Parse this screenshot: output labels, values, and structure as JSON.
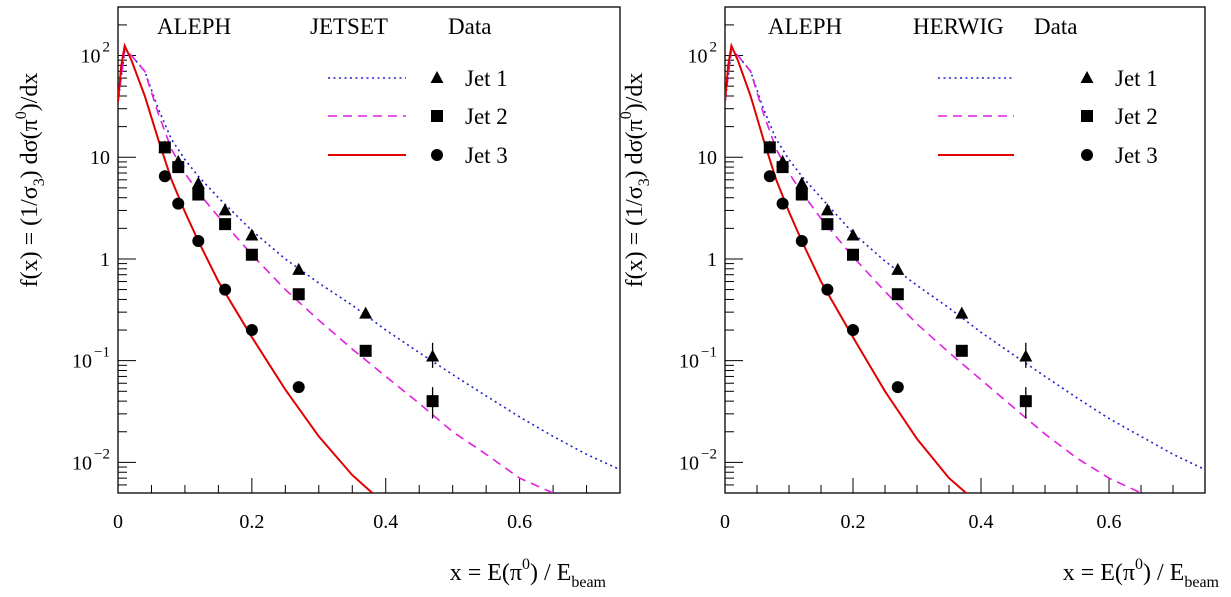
{
  "chart_data": [
    {
      "type": "line",
      "title": "",
      "annotations": [
        "ALEPH"
      ],
      "legend_header": {
        "model": "JETSET",
        "data": "Data"
      },
      "xlabel": {
        "main": "x = E(π",
        "sup": "0",
        "mid": ") / E",
        "sub": "beam"
      },
      "ylabel": {
        "a": "f(x) = (1/σ",
        "a_sub": "3",
        "b": ") dσ(π",
        "b_sup": "0",
        "c": ")/dx"
      },
      "xlim": [
        0,
        0.75
      ],
      "ylim": [
        0.005,
        300
      ],
      "yscale": "log",
      "x_ticks": [
        "0",
        "0.2",
        "0.4",
        "0.6"
      ],
      "y_ticks": [
        {
          "value": 100,
          "base": "10",
          "exp": "2"
        },
        {
          "value": 10,
          "base": "10",
          "exp": ""
        },
        {
          "value": 1,
          "base": "1",
          "exp": ""
        },
        {
          "value": 0.1,
          "base": "10",
          "exp": "−1"
        },
        {
          "value": 0.01,
          "base": "10",
          "exp": "−2"
        }
      ],
      "series": [
        {
          "kind": "model",
          "style": "dotted",
          "color": "#2020d0",
          "x": [
            0.0,
            0.01,
            0.02,
            0.04,
            0.06,
            0.08,
            0.1,
            0.12,
            0.15,
            0.2,
            0.25,
            0.3,
            0.35,
            0.4,
            0.45,
            0.5,
            0.55,
            0.6,
            0.65,
            0.7,
            0.75
          ],
          "y": [
            35,
            110,
            100,
            70,
            30,
            15,
            9.5,
            6.5,
            4,
            1.9,
            1.0,
            0.58,
            0.35,
            0.2,
            0.12,
            0.073,
            0.045,
            0.028,
            0.018,
            0.012,
            0.0085
          ]
        },
        {
          "kind": "model",
          "style": "dashed",
          "color": "#e020e0",
          "x": [
            0.0,
            0.01,
            0.02,
            0.04,
            0.06,
            0.08,
            0.1,
            0.12,
            0.15,
            0.2,
            0.25,
            0.3,
            0.35,
            0.4,
            0.45,
            0.5,
            0.55,
            0.6,
            0.65
          ],
          "y": [
            35,
            115,
            100,
            70,
            27,
            12,
            7,
            4.5,
            2.6,
            1.1,
            0.5,
            0.25,
            0.13,
            0.07,
            0.038,
            0.02,
            0.012,
            0.007,
            0.005
          ]
        },
        {
          "kind": "model",
          "style": "solid",
          "color": "#e00000",
          "x": [
            0.0,
            0.005,
            0.01,
            0.02,
            0.04,
            0.06,
            0.08,
            0.1,
            0.12,
            0.15,
            0.2,
            0.25,
            0.3,
            0.35,
            0.38
          ],
          "y": [
            35,
            80,
            125,
            90,
            40,
            15,
            6,
            2.9,
            1.5,
            0.6,
            0.17,
            0.052,
            0.018,
            0.0075,
            0.005
          ]
        }
      ],
      "data_points": [
        {
          "name": "Jet 1",
          "marker": "triangle",
          "x": [
            0.07,
            0.09,
            0.12,
            0.16,
            0.2,
            0.27,
            0.37,
            0.47
          ],
          "y": [
            12.5,
            9.0,
            5.5,
            3.0,
            1.7,
            0.78,
            0.29,
            0.11
          ],
          "err_lo": [
            null,
            null,
            null,
            null,
            null,
            null,
            null,
            0.085
          ],
          "err_hi": [
            null,
            null,
            null,
            null,
            null,
            null,
            null,
            0.15
          ]
        },
        {
          "name": "Jet 2",
          "marker": "square",
          "x": [
            0.07,
            0.09,
            0.12,
            0.16,
            0.2,
            0.27,
            0.37,
            0.47
          ],
          "y": [
            12.5,
            8.0,
            4.3,
            2.2,
            1.1,
            0.45,
            0.125,
            0.04
          ],
          "err_lo": [
            null,
            null,
            null,
            null,
            null,
            null,
            null,
            0.027
          ],
          "err_hi": [
            null,
            null,
            null,
            null,
            null,
            null,
            null,
            0.055
          ]
        },
        {
          "name": "Jet 3",
          "marker": "circle",
          "x": [
            0.07,
            0.09,
            0.12,
            0.16,
            0.2,
            0.27
          ],
          "y": [
            6.5,
            3.5,
            1.5,
            0.5,
            0.2,
            0.055
          ],
          "err_lo": [
            null,
            null,
            null,
            null,
            null,
            null
          ],
          "err_hi": [
            null,
            null,
            null,
            null,
            null,
            null
          ]
        }
      ]
    },
    {
      "type": "line",
      "title": "",
      "annotations": [
        "ALEPH"
      ],
      "legend_header": {
        "model": "HERWIG",
        "data": "Data"
      },
      "xlabel": {
        "main": "x = E(π",
        "sup": "0",
        "mid": ") / E",
        "sub": "beam"
      },
      "ylabel": {
        "a": "f(x) = (1/σ",
        "a_sub": "3",
        "b": ") dσ(π",
        "b_sup": "0",
        "c": ")/dx"
      },
      "xlim": [
        0,
        0.75
      ],
      "ylim": [
        0.005,
        300
      ],
      "yscale": "log",
      "x_ticks": [
        "0",
        "0.2",
        "0.4",
        "0.6"
      ],
      "y_ticks": [
        {
          "value": 100,
          "base": "10",
          "exp": "2"
        },
        {
          "value": 10,
          "base": "10",
          "exp": ""
        },
        {
          "value": 1,
          "base": "1",
          "exp": ""
        },
        {
          "value": 0.1,
          "base": "10",
          "exp": "−1"
        },
        {
          "value": 0.01,
          "base": "10",
          "exp": "−2"
        }
      ],
      "series": [
        {
          "kind": "model",
          "style": "dotted",
          "color": "#2020d0",
          "x": [
            0.0,
            0.01,
            0.02,
            0.04,
            0.06,
            0.08,
            0.1,
            0.12,
            0.15,
            0.2,
            0.25,
            0.3,
            0.35,
            0.4,
            0.45,
            0.5,
            0.55,
            0.6,
            0.65,
            0.7,
            0.75
          ],
          "y": [
            35,
            110,
            100,
            70,
            30,
            15,
            9.5,
            6.5,
            4,
            1.8,
            0.95,
            0.55,
            0.33,
            0.19,
            0.115,
            0.07,
            0.043,
            0.027,
            0.018,
            0.012,
            0.0085
          ]
        },
        {
          "kind": "model",
          "style": "dashed",
          "color": "#e020e0",
          "x": [
            0.0,
            0.01,
            0.02,
            0.04,
            0.06,
            0.08,
            0.1,
            0.12,
            0.15,
            0.2,
            0.25,
            0.3,
            0.35,
            0.4,
            0.45,
            0.5,
            0.55,
            0.6,
            0.65
          ],
          "y": [
            35,
            115,
            100,
            70,
            27,
            12,
            7,
            4.5,
            2.5,
            1.05,
            0.48,
            0.23,
            0.12,
            0.065,
            0.035,
            0.019,
            0.011,
            0.007,
            0.005
          ]
        },
        {
          "kind": "model",
          "style": "solid",
          "color": "#e00000",
          "x": [
            0.0,
            0.005,
            0.01,
            0.02,
            0.04,
            0.06,
            0.08,
            0.1,
            0.12,
            0.15,
            0.2,
            0.25,
            0.3,
            0.35,
            0.38
          ],
          "y": [
            35,
            80,
            125,
            90,
            40,
            15,
            6,
            2.9,
            1.5,
            0.6,
            0.17,
            0.05,
            0.017,
            0.007,
            0.0048
          ]
        }
      ],
      "data_points": [
        {
          "name": "Jet 1",
          "marker": "triangle",
          "x": [
            0.07,
            0.09,
            0.12,
            0.16,
            0.2,
            0.27,
            0.37,
            0.47
          ],
          "y": [
            12.5,
            9.0,
            5.5,
            3.0,
            1.7,
            0.78,
            0.29,
            0.11
          ],
          "err_lo": [
            null,
            null,
            null,
            null,
            null,
            null,
            null,
            0.085
          ],
          "err_hi": [
            null,
            null,
            null,
            null,
            null,
            null,
            null,
            0.15
          ]
        },
        {
          "name": "Jet 2",
          "marker": "square",
          "x": [
            0.07,
            0.09,
            0.12,
            0.16,
            0.2,
            0.27,
            0.37,
            0.47
          ],
          "y": [
            12.5,
            8.0,
            4.3,
            2.2,
            1.1,
            0.45,
            0.125,
            0.04
          ],
          "err_lo": [
            null,
            null,
            null,
            null,
            null,
            null,
            null,
            0.027
          ],
          "err_hi": [
            null,
            null,
            null,
            null,
            null,
            null,
            null,
            0.055
          ]
        },
        {
          "name": "Jet 3",
          "marker": "circle",
          "x": [
            0.07,
            0.09,
            0.12,
            0.16,
            0.2,
            0.27
          ],
          "y": [
            6.5,
            3.5,
            1.5,
            0.5,
            0.2,
            0.055
          ],
          "err_lo": [
            null,
            null,
            null,
            null,
            null,
            null
          ],
          "err_hi": [
            null,
            null,
            null,
            null,
            null,
            null
          ]
        }
      ]
    }
  ]
}
